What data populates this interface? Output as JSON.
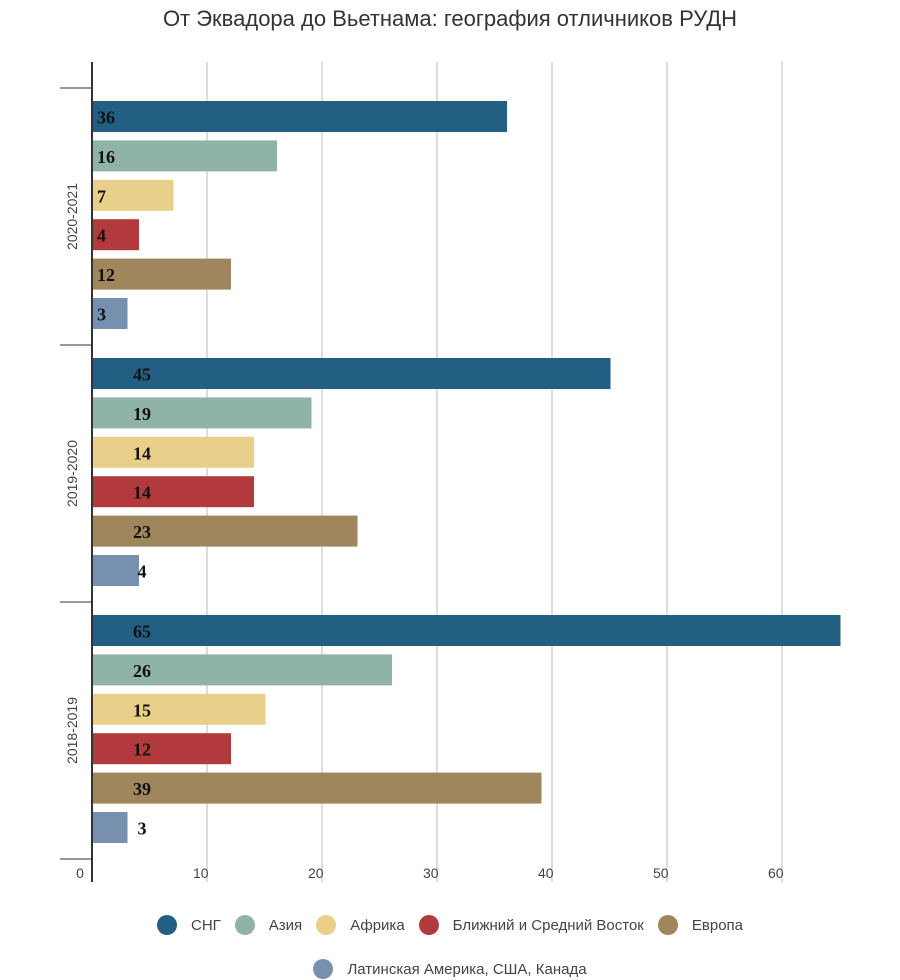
{
  "chart_data": {
    "type": "bar",
    "orientation": "horizontal",
    "title": "От Эквадора до Вьетнама: география отличников РУДН",
    "categories": [
      "2020-2021",
      "2019-2020",
      "2018-2019"
    ],
    "series": [
      {
        "name": "СНГ",
        "color": "#235f83",
        "values": [
          36,
          45,
          65
        ]
      },
      {
        "name": "Азия",
        "color": "#8fb3a8",
        "values": [
          16,
          19,
          26
        ]
      },
      {
        "name": "Африка",
        "color": "#e9d08a",
        "values": [
          7,
          14,
          15
        ]
      },
      {
        "name": "Ближний и Средний Восток",
        "color": "#b33a3c",
        "values": [
          4,
          14,
          12
        ]
      },
      {
        "name": "Европа",
        "color": "#a0865c",
        "values": [
          12,
          23,
          39
        ]
      },
      {
        "name": "Латинская Америка, США, Канада",
        "color": "#7890b0",
        "values": [
          3,
          4,
          3
        ]
      }
    ],
    "xticks": [
      "0",
      "10",
      "20",
      "30",
      "40",
      "50",
      "60"
    ],
    "xlim": [
      0,
      65
    ],
    "grid": true,
    "legend_position": "bottom"
  }
}
